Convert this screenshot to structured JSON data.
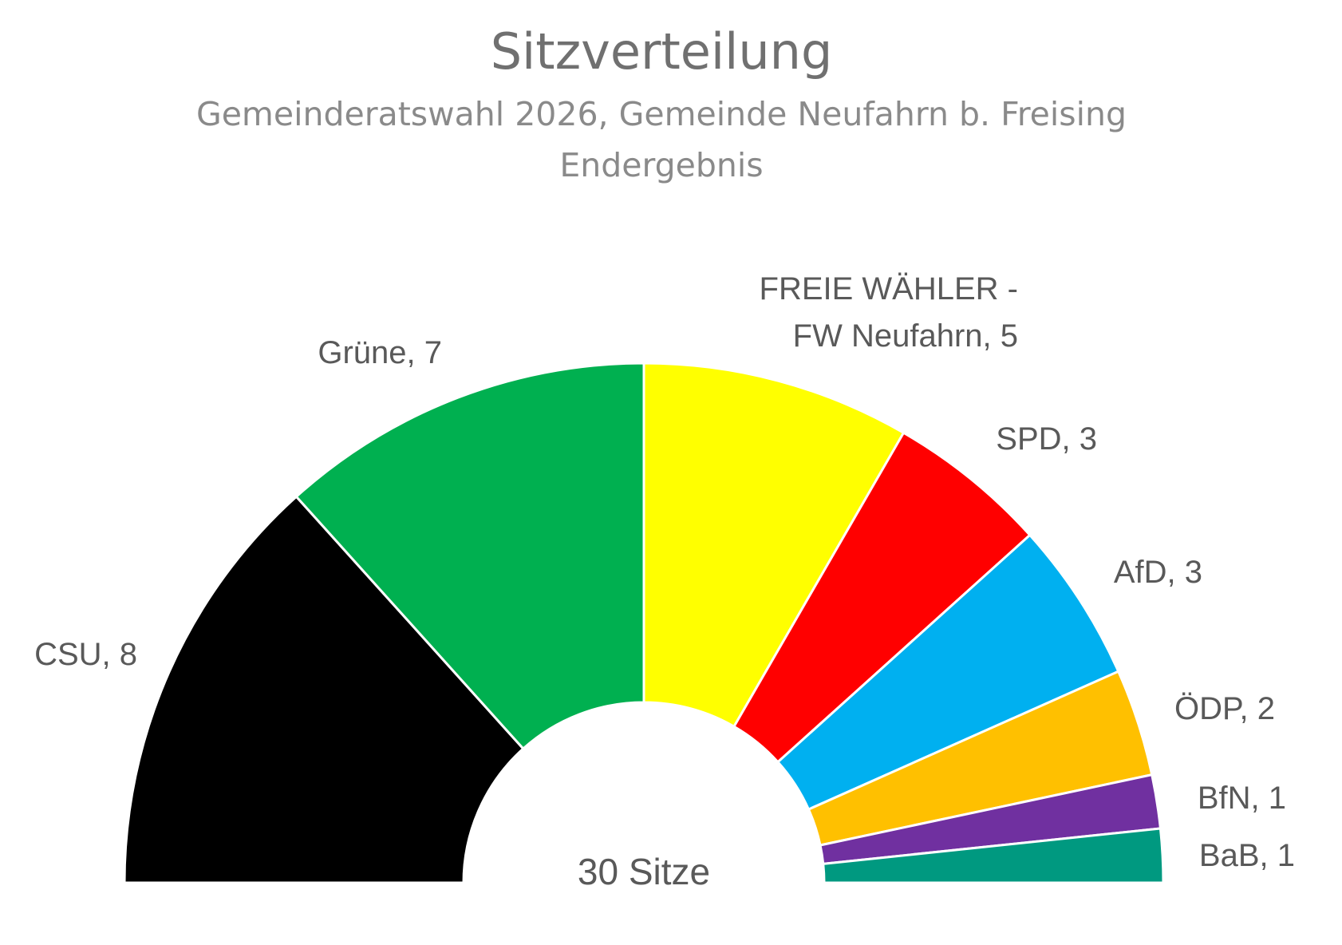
{
  "chart_data": {
    "type": "pie",
    "variant": "parliament-half-donut",
    "title": "Sitzverteilung",
    "subtitle_lines": [
      "Gemeinderatswahl 2026, Gemeinde Neufahrn b. Freising",
      "Endergebnis"
    ],
    "center_label": "30 Sitze",
    "total": 30,
    "series": [
      {
        "name": "CSU",
        "value": 8,
        "color": "#000000",
        "label_lines": [
          "CSU, 8"
        ]
      },
      {
        "name": "Grüne",
        "value": 7,
        "color": "#00B050",
        "label_lines": [
          "Grüne, 7"
        ]
      },
      {
        "name": "FREIE WÄHLER - FW Neufahrn",
        "value": 5,
        "color": "#FFFF00",
        "label_lines": [
          "FREIE WÄHLER -",
          "FW Neufahrn, 5"
        ]
      },
      {
        "name": "SPD",
        "value": 3,
        "color": "#FF0000",
        "label_lines": [
          "SPD, 3"
        ]
      },
      {
        "name": "AfD",
        "value": 3,
        "color": "#00B0F0",
        "label_lines": [
          "AfD, 3"
        ]
      },
      {
        "name": "ÖDP",
        "value": 2,
        "color": "#FFC000",
        "label_lines": [
          "ÖDP, 2"
        ]
      },
      {
        "name": "BfN",
        "value": 1,
        "color": "#7030A0",
        "label_lines": [
          "BfN, 1"
        ]
      },
      {
        "name": "BaB",
        "value": 1,
        "color": "#009980",
        "label_lines": [
          "BaB, 1"
        ]
      }
    ]
  }
}
